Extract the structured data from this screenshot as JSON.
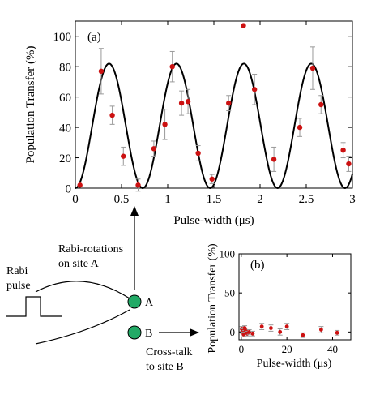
{
  "colors": {
    "marker": "#cc1111",
    "errorbar": "#999999",
    "fit": "#000000",
    "ion": "#22aa66"
  },
  "chart_data": [
    {
      "id": "a",
      "type": "scatter",
      "panel_label": "(a)",
      "xlabel": "Pulse-width (μs)",
      "ylabel": "Population Transfer (%)",
      "xlim": [
        0,
        3
      ],
      "ylim": [
        0,
        110
      ],
      "xticks": [
        "0",
        "0.5",
        "1",
        "1.5",
        "2",
        "2.5",
        "3"
      ],
      "yticks": [
        "0",
        "20",
        "40",
        "60",
        "80",
        "100"
      ],
      "series": [
        {
          "type": "scatter",
          "x": [
            0.05,
            0.28,
            0.4,
            0.52,
            0.68,
            0.85,
            0.97,
            1.05,
            1.15,
            1.22,
            1.33,
            1.48,
            1.66,
            1.82,
            1.94,
            2.15,
            2.43,
            2.57,
            2.66,
            2.9,
            2.96
          ],
          "y": [
            2,
            77,
            48,
            21,
            2,
            26,
            42,
            80,
            56,
            57,
            23,
            6,
            56,
            107,
            65,
            19,
            40,
            79,
            55,
            25,
            16
          ],
          "err": [
            0,
            15,
            6,
            6,
            4,
            5,
            10,
            10,
            8,
            8,
            5,
            3,
            5,
            0,
            10,
            8,
            6,
            14,
            6,
            5,
            5
          ]
        },
        {
          "type": "line",
          "function": "Rabi fit",
          "amplitude": 82,
          "period": 0.73,
          "offset": 0
        }
      ]
    },
    {
      "id": "b",
      "type": "scatter",
      "panel_label": "(b)",
      "xlabel": "Pulse-width (μs)",
      "ylabel": "Population Transfer (%)",
      "xlim": [
        -1,
        48
      ],
      "ylim": [
        -10,
        100
      ],
      "xticks": [
        "0",
        "20",
        "40"
      ],
      "yticks": [
        "0",
        "50",
        "100"
      ],
      "series": [
        {
          "type": "scatter",
          "x": [
            0.2,
            0.6,
            1.0,
            1.5,
            2.0,
            2.6,
            3.5,
            5.0,
            9.0,
            13.0,
            17.0,
            20.0,
            27.0,
            35.0,
            42.0
          ],
          "y": [
            4,
            1,
            -3,
            5,
            2,
            -2,
            0,
            -2,
            7,
            5,
            0,
            7,
            -4,
            3,
            -1
          ],
          "err": [
            3,
            3,
            3,
            3,
            3,
            3,
            3,
            3,
            4,
            4,
            4,
            4,
            3,
            4,
            3
          ]
        }
      ]
    }
  ],
  "schematic": {
    "rabi_label_line1": "Rabi",
    "rabi_label_line2": "pulse",
    "site_a": "A",
    "site_b": "B",
    "arrow_a_line1": "Rabi-rotations",
    "arrow_a_line2": "on site A",
    "arrow_b_line1": "Cross-talk",
    "arrow_b_line2": "to site B"
  }
}
